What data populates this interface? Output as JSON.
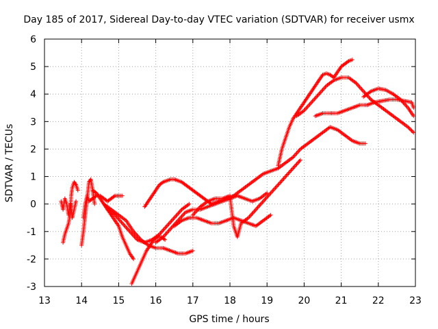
{
  "chart_data": {
    "type": "scatter",
    "title": "Day 185 of 2017, Sidereal Day-to-day VTEC variation (SDTVAR) for receiver usmx",
    "xlabel": "GPS time / hours",
    "ylabel": "SDTVAR / TECUs",
    "xlim": [
      13,
      23
    ],
    "ylim": [
      -3,
      6
    ],
    "xticks": [
      "13",
      "14",
      "15",
      "16",
      "17",
      "18",
      "19",
      "20",
      "21",
      "22",
      "23"
    ],
    "yticks": [
      "-3",
      "-2",
      "-1",
      "0",
      "1",
      "2",
      "3",
      "4",
      "5",
      "6"
    ],
    "grid": true,
    "marker": "plus",
    "color": "#ff0000",
    "series": [
      {
        "x": [
          13.5,
          13.55,
          13.6,
          13.65,
          13.7,
          13.72,
          13.75,
          13.8,
          13.85,
          13.9
        ],
        "y": [
          -1.4,
          -1.1,
          -0.9,
          -0.7,
          -0.3,
          0.3,
          0.6,
          0.8,
          0.7,
          0.5
        ]
      },
      {
        "x": [
          13.45,
          13.5,
          13.55,
          13.6,
          13.65,
          13.7,
          13.75,
          13.8,
          13.85
        ],
        "y": [
          0.1,
          -0.2,
          0.2,
          0.0,
          -0.4,
          0.0,
          -0.5,
          -0.2,
          0.1
        ]
      },
      {
        "x": [
          14.0,
          14.05,
          14.1,
          14.15,
          14.2,
          14.25,
          14.3,
          14.35
        ],
        "y": [
          -1.5,
          -1.0,
          -0.4,
          0.2,
          0.8,
          0.9,
          0.5,
          0.0
        ]
      },
      {
        "x": [
          14.05,
          14.1,
          14.15,
          14.2,
          14.3,
          14.4,
          14.5,
          14.6,
          14.7,
          14.8,
          14.9,
          15.0,
          15.1
        ],
        "y": [
          -0.5,
          0.0,
          0.3,
          0.1,
          0.2,
          0.3,
          0.3,
          0.2,
          0.1,
          0.2,
          0.3,
          0.3,
          0.3
        ]
      },
      {
        "x": [
          14.3,
          14.4,
          14.5,
          14.6,
          14.7,
          14.8,
          14.9,
          15.0,
          15.1,
          15.2,
          15.3,
          15.4
        ],
        "y": [
          0.5,
          0.4,
          0.2,
          0.0,
          -0.2,
          -0.4,
          -0.6,
          -0.8,
          -1.2,
          -1.5,
          -1.8,
          -2.0
        ]
      },
      {
        "x": [
          14.6,
          14.8,
          15.0,
          15.2,
          15.4,
          15.6,
          15.8,
          16.0,
          16.2,
          16.4,
          16.6,
          16.8,
          17.0
        ],
        "y": [
          0.0,
          -0.2,
          -0.4,
          -0.6,
          -1.0,
          -1.3,
          -1.5,
          -1.6,
          -1.6,
          -1.7,
          -1.8,
          -1.8,
          -1.7
        ]
      },
      {
        "x": [
          14.7,
          14.9,
          15.1,
          15.3,
          15.5,
          15.7,
          15.9,
          16.1,
          16.3,
          16.5,
          16.7,
          16.9
        ],
        "y": [
          -0.2,
          -0.4,
          -0.7,
          -1.0,
          -1.3,
          -1.4,
          -1.3,
          -1.1,
          -0.8,
          -0.5,
          -0.2,
          0.0
        ]
      },
      {
        "x": [
          15.35,
          15.45,
          15.55,
          15.65,
          15.75,
          15.85,
          15.95,
          16.05,
          16.15,
          16.25
        ],
        "y": [
          -2.9,
          -2.6,
          -2.3,
          -2.0,
          -1.7,
          -1.5,
          -1.3,
          -1.2,
          -1.2,
          -1.3
        ]
      },
      {
        "x": [
          15.7,
          15.8,
          15.9,
          16.0,
          16.1,
          16.2,
          16.3,
          16.4,
          16.5,
          16.6,
          16.7,
          16.8,
          16.9,
          17.0,
          17.1,
          17.2,
          17.3,
          17.4,
          17.5
        ],
        "y": [
          -0.1,
          0.1,
          0.3,
          0.5,
          0.7,
          0.8,
          0.85,
          0.9,
          0.9,
          0.85,
          0.8,
          0.7,
          0.6,
          0.5,
          0.4,
          0.3,
          0.2,
          0.1,
          0.0
        ]
      },
      {
        "x": [
          16.0,
          16.2,
          16.4,
          16.6,
          16.8,
          17.0,
          17.2,
          17.4,
          17.6,
          17.8,
          18.0,
          18.2,
          18.4,
          18.6,
          18.8,
          19.0
        ],
        "y": [
          -1.4,
          -1.2,
          -0.9,
          -0.6,
          -0.3,
          -0.2,
          -0.2,
          -0.1,
          0.0,
          0.1,
          0.2,
          0.3,
          0.2,
          0.1,
          0.2,
          0.4
        ]
      },
      {
        "x": [
          16.5,
          16.7,
          16.9,
          17.1,
          17.3,
          17.5,
          17.7,
          17.9,
          18.1,
          18.3,
          18.5,
          18.7,
          18.9,
          19.1
        ],
        "y": [
          -0.8,
          -0.6,
          -0.5,
          -0.5,
          -0.6,
          -0.7,
          -0.7,
          -0.6,
          -0.5,
          -0.6,
          -0.7,
          -0.8,
          -0.6,
          -0.4
        ]
      },
      {
        "x": [
          17.0,
          17.2,
          17.4,
          17.6,
          17.8,
          18.0,
          18.1,
          18.2,
          18.3,
          18.5,
          18.7,
          18.9,
          19.1,
          19.3,
          19.5,
          19.7,
          19.9
        ],
        "y": [
          -0.4,
          -0.1,
          0.1,
          0.2,
          0.2,
          0.3,
          -0.8,
          -1.2,
          -0.7,
          -0.5,
          -0.2,
          0.1,
          0.4,
          0.7,
          1.0,
          1.3,
          1.6
        ]
      },
      {
        "x": [
          17.5,
          17.7,
          17.9,
          18.1,
          18.3,
          18.5,
          18.7,
          18.9,
          19.1,
          19.3,
          19.5,
          19.7,
          19.9,
          20.1,
          20.3,
          20.5,
          20.7,
          20.9,
          21.1,
          21.3,
          21.5,
          21.65
        ],
        "y": [
          0.0,
          0.1,
          0.2,
          0.3,
          0.5,
          0.7,
          0.9,
          1.1,
          1.2,
          1.3,
          1.5,
          1.7,
          2.0,
          2.2,
          2.4,
          2.6,
          2.8,
          2.7,
          2.5,
          2.3,
          2.2,
          2.2
        ]
      },
      {
        "x": [
          19.3,
          19.4,
          19.5,
          19.6,
          19.7,
          19.8,
          19.9,
          20.0,
          20.1,
          20.2,
          20.3,
          20.4,
          20.5,
          20.6,
          20.7,
          20.8,
          20.9,
          21.0,
          21.1,
          21.2,
          21.3
        ],
        "y": [
          1.4,
          2.0,
          2.4,
          2.8,
          3.1,
          3.3,
          3.5,
          3.7,
          3.9,
          4.1,
          4.3,
          4.5,
          4.7,
          4.75,
          4.7,
          4.6,
          4.8,
          5.0,
          5.1,
          5.2,
          5.25
        ]
      },
      {
        "x": [
          19.8,
          20.0,
          20.2,
          20.4,
          20.6,
          20.8,
          21.0,
          21.2,
          21.4,
          21.6,
          21.8,
          22.0,
          22.2,
          22.4,
          22.6,
          22.8,
          22.95
        ],
        "y": [
          3.2,
          3.4,
          3.7,
          4.0,
          4.3,
          4.5,
          4.6,
          4.6,
          4.4,
          4.1,
          3.8,
          3.6,
          3.4,
          3.2,
          3.0,
          2.8,
          2.6
        ]
      },
      {
        "x": [
          20.3,
          20.5,
          20.7,
          20.9,
          21.1,
          21.3,
          21.5,
          21.7,
          21.9,
          22.1,
          22.3,
          22.5,
          22.7,
          22.9,
          22.95
        ],
        "y": [
          3.2,
          3.3,
          3.3,
          3.3,
          3.4,
          3.5,
          3.6,
          3.6,
          3.7,
          3.75,
          3.8,
          3.8,
          3.75,
          3.7,
          3.5
        ]
      },
      {
        "x": [
          21.6,
          21.8,
          22.0,
          22.2,
          22.4,
          22.6,
          22.8,
          22.95
        ],
        "y": [
          3.9,
          4.1,
          4.2,
          4.15,
          4.0,
          3.8,
          3.5,
          3.2
        ]
      }
    ]
  }
}
